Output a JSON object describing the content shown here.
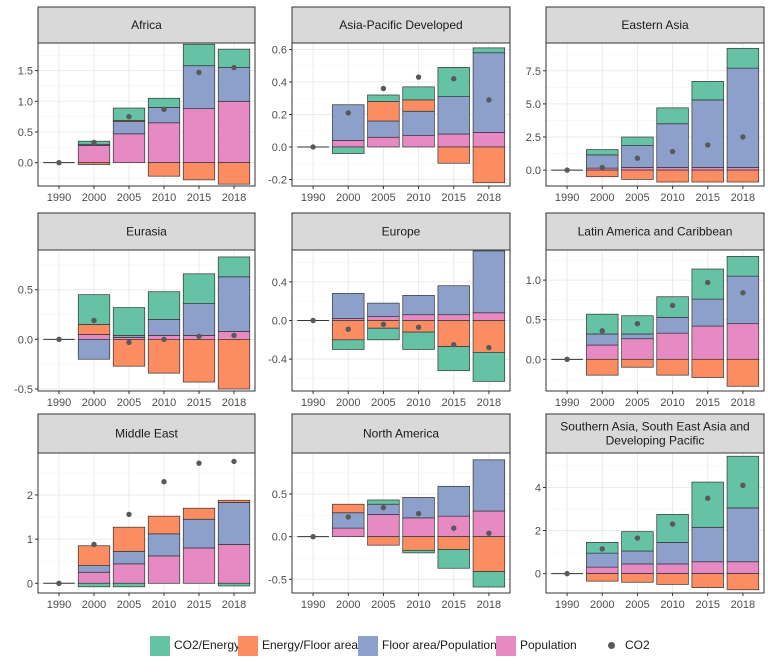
{
  "chart_data": {
    "type": "bar",
    "stacked": true,
    "grid": true,
    "legend_position": "bottom",
    "categories": [
      "1990",
      "2000",
      "2005",
      "2010",
      "2015",
      "2018"
    ],
    "colors": {
      "CO2/Energy": "#66c2a5",
      "Energy/Floor area": "#fc8d62",
      "Floor area/Population": "#8da0cb",
      "Population": "#e78ac3",
      "CO2": "#595959",
      "strip_bg": "#d9d9d9",
      "panel_border": "#333333",
      "grid": "#ebebeb"
    },
    "legend": {
      "items": [
        {
          "label": "CO2/Energy",
          "kind": "fill",
          "color": "#66c2a5"
        },
        {
          "label": "Energy/Floor area",
          "kind": "fill",
          "color": "#fc8d62"
        },
        {
          "label": "Floor area/Population",
          "kind": "fill",
          "color": "#8da0cb"
        },
        {
          "label": "Population",
          "kind": "fill",
          "color": "#e78ac3"
        },
        {
          "label": "CO2",
          "kind": "point",
          "color": "#595959"
        }
      ]
    },
    "panels": [
      {
        "title_lines": [
          "Africa"
        ],
        "ylim": [
          -0.38,
          1.95
        ],
        "yticks": [
          0,
          0.5,
          1,
          1.5
        ],
        "ytick_labels": [
          "0.0",
          "0.5",
          "1.0",
          "1.5"
        ],
        "series": [
          {
            "name": "CO2/Energy",
            "values": [
              0,
              0.05,
              0.2,
              0.15,
              0.35,
              0.3
            ]
          },
          {
            "name": "Energy/Floor area",
            "values": [
              0,
              -0.03,
              0.02,
              -0.22,
              -0.28,
              -0.35
            ]
          },
          {
            "name": "Floor area/Population",
            "values": [
              0,
              0.02,
              0.2,
              0.25,
              0.7,
              0.55
            ]
          },
          {
            "name": "Population",
            "values": [
              0,
              0.28,
              0.47,
              0.65,
              0.88,
              1.0
            ]
          }
        ],
        "co2": [
          0,
          0.33,
          0.75,
          0.87,
          1.47,
          1.55
        ]
      },
      {
        "title_lines": [
          "Asia-Pacific Developed"
        ],
        "ylim": [
          -0.24,
          0.64
        ],
        "yticks": [
          -0.2,
          0,
          0.2,
          0.4,
          0.6
        ],
        "ytick_labels": [
          "-0.2",
          "0.0",
          "0.2",
          "0.4",
          "0.6"
        ],
        "series": [
          {
            "name": "CO2/Energy",
            "values": [
              0,
              -0.04,
              0.04,
              0.08,
              0.18,
              0.03
            ]
          },
          {
            "name": "Energy/Floor area",
            "values": [
              0,
              0.0,
              0.12,
              0.07,
              -0.1,
              -0.22
            ]
          },
          {
            "name": "Floor area/Population",
            "values": [
              0,
              0.22,
              0.1,
              0.15,
              0.23,
              0.49
            ]
          },
          {
            "name": "Population",
            "values": [
              0,
              0.04,
              0.06,
              0.07,
              0.08,
              0.09
            ]
          }
        ],
        "co2": [
          0,
          0.21,
          0.36,
          0.43,
          0.42,
          0.29
        ]
      },
      {
        "title_lines": [
          "Eastern Asia"
        ],
        "ylim": [
          -1.2,
          9.6
        ],
        "yticks": [
          0,
          2.5,
          5,
          7.5
        ],
        "ytick_labels": [
          "0.0",
          "2.5",
          "5.0",
          "7.5"
        ],
        "series": [
          {
            "name": "CO2/Energy",
            "values": [
              0,
              0.4,
              0.65,
              1.2,
              1.4,
              1.5
            ]
          },
          {
            "name": "Energy/Floor area",
            "values": [
              0,
              -0.5,
              -0.7,
              -0.9,
              -0.9,
              -0.9
            ]
          },
          {
            "name": "Floor area/Population",
            "values": [
              0,
              1.0,
              1.65,
              3.3,
              5.1,
              7.5
            ]
          },
          {
            "name": "Population",
            "values": [
              0,
              0.15,
              0.2,
              0.2,
              0.2,
              0.2
            ]
          }
        ],
        "co2": [
          0,
          0.2,
          0.9,
          1.4,
          1.9,
          2.5
        ]
      },
      {
        "title_lines": [
          "Eurasia"
        ],
        "ylim": [
          -0.52,
          0.9
        ],
        "yticks": [
          -0.5,
          0,
          0.5
        ],
        "ytick_labels": [
          "-0.5",
          "0.0",
          "0.5"
        ],
        "series": [
          {
            "name": "CO2/Energy",
            "values": [
              0,
              0.3,
              0.28,
              0.28,
              0.3,
              0.2
            ]
          },
          {
            "name": "Energy/Floor area",
            "values": [
              0,
              0.1,
              -0.27,
              -0.34,
              -0.43,
              -0.5
            ]
          },
          {
            "name": "Floor area/Population",
            "values": [
              0,
              -0.2,
              0.02,
              0.16,
              0.32,
              0.55
            ]
          },
          {
            "name": "Population",
            "values": [
              0,
              0.05,
              0.02,
              0.04,
              0.04,
              0.08
            ]
          }
        ],
        "co2": [
          0,
          0.19,
          -0.03,
          0.0,
          0.03,
          0.04
        ]
      },
      {
        "title_lines": [
          "Europe"
        ],
        "ylim": [
          -0.73,
          0.73
        ],
        "yticks": [
          -0.4,
          0,
          0.4
        ],
        "ytick_labels": [
          "-0.4",
          "0.0",
          "0.4"
        ],
        "series": [
          {
            "name": "CO2/Energy",
            "values": [
              0,
              -0.1,
              -0.12,
              -0.18,
              -0.25,
              -0.3
            ]
          },
          {
            "name": "Energy/Floor area",
            "values": [
              0,
              -0.2,
              -0.08,
              -0.12,
              -0.27,
              -0.33
            ]
          },
          {
            "name": "Floor area/Population",
            "values": [
              0,
              0.26,
              0.14,
              0.2,
              0.3,
              0.64
            ]
          },
          {
            "name": "Population",
            "values": [
              0,
              0.02,
              0.04,
              0.06,
              0.06,
              0.08
            ]
          }
        ],
        "co2": [
          0,
          -0.09,
          -0.04,
          -0.07,
          -0.25,
          -0.28
        ]
      },
      {
        "title_lines": [
          "Latin America and Caribbean"
        ],
        "ylim": [
          -0.4,
          1.38
        ],
        "yticks": [
          0,
          0.5,
          1
        ],
        "ytick_labels": [
          "0.0",
          "0.5",
          "1.0"
        ],
        "series": [
          {
            "name": "CO2/Energy",
            "values": [
              0,
              0.25,
              0.23,
              0.26,
              0.38,
              0.25
            ]
          },
          {
            "name": "Energy/Floor area",
            "values": [
              0,
              -0.2,
              -0.1,
              -0.2,
              -0.23,
              -0.34
            ]
          },
          {
            "name": "Floor area/Population",
            "values": [
              0,
              0.14,
              0.06,
              0.2,
              0.34,
              0.6
            ]
          },
          {
            "name": "Population",
            "values": [
              0,
              0.18,
              0.26,
              0.33,
              0.42,
              0.45
            ]
          }
        ],
        "co2": [
          0,
          0.36,
          0.45,
          0.68,
          0.97,
          0.84
        ]
      },
      {
        "title_lines": [
          "Middle East"
        ],
        "ylim": [
          -0.22,
          2.95
        ],
        "yticks": [
          0,
          1,
          2
        ],
        "ytick_labels": [
          "0",
          "1",
          "2"
        ],
        "series": [
          {
            "name": "CO2/Energy",
            "values": [
              0,
              -0.08,
              -0.08,
              0.0,
              0.0,
              -0.06
            ]
          },
          {
            "name": "Energy/Floor area",
            "values": [
              0,
              0.45,
              0.55,
              0.4,
              0.25,
              0.05
            ]
          },
          {
            "name": "Floor area/Population",
            "values": [
              0,
              0.15,
              0.28,
              0.5,
              0.65,
              0.95
            ]
          },
          {
            "name": "Population",
            "values": [
              0,
              0.25,
              0.44,
              0.62,
              0.8,
              0.88
            ]
          }
        ],
        "co2": [
          0,
          0.88,
          1.56,
          2.3,
          2.72,
          2.76
        ]
      },
      {
        "title_lines": [
          "North America"
        ],
        "ylim": [
          -0.66,
          0.98
        ],
        "yticks": [
          -0.5,
          0,
          0.5
        ],
        "ytick_labels": [
          "-0.5",
          "0.0",
          "0.5"
        ],
        "series": [
          {
            "name": "CO2/Energy",
            "values": [
              0,
              0.0,
              0.05,
              -0.03,
              -0.22,
              -0.18
            ]
          },
          {
            "name": "Energy/Floor area",
            "values": [
              0,
              0.1,
              -0.1,
              -0.16,
              -0.15,
              -0.41
            ]
          },
          {
            "name": "Floor area/Population",
            "values": [
              0,
              0.18,
              0.12,
              0.24,
              0.35,
              0.6
            ]
          },
          {
            "name": "Population",
            "values": [
              0,
              0.1,
              0.26,
              0.22,
              0.24,
              0.3
            ]
          }
        ],
        "co2": [
          0,
          0.23,
          0.34,
          0.27,
          0.1,
          0.04
        ]
      },
      {
        "title_lines": [
          "Southern Asia, South East Asia and",
          "Developing Pacific"
        ],
        "ylim": [
          -0.9,
          5.6
        ],
        "yticks": [
          0,
          2,
          4
        ],
        "ytick_labels": [
          "0",
          "2",
          "4"
        ],
        "series": [
          {
            "name": "CO2/Energy",
            "values": [
              0,
              0.5,
              0.9,
              1.3,
              2.1,
              2.4
            ]
          },
          {
            "name": "Energy/Floor area",
            "values": [
              0,
              -0.35,
              -0.4,
              -0.5,
              -0.65,
              -0.75
            ]
          },
          {
            "name": "Floor area/Population",
            "values": [
              0,
              0.65,
              0.6,
              1.0,
              1.6,
              2.5
            ]
          },
          {
            "name": "Population",
            "values": [
              0,
              0.3,
              0.45,
              0.45,
              0.55,
              0.55
            ]
          }
        ],
        "co2": [
          0,
          1.15,
          1.65,
          2.3,
          3.5,
          4.1
        ]
      }
    ]
  }
}
